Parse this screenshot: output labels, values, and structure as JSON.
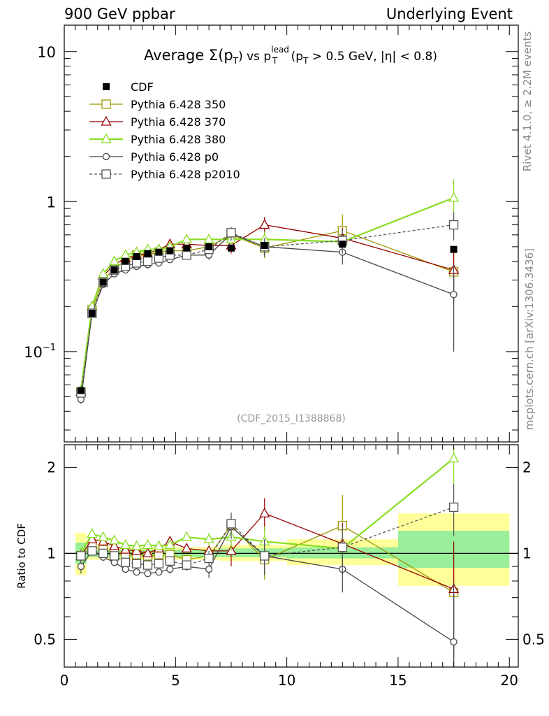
{
  "header": {
    "left": "900 GeV ppbar",
    "right": "Underlying Event"
  },
  "side_labels": {
    "rivet": "Rivet 4.1.0, ≥ 2.2M events",
    "mcplots": "mcplots.cern.ch [arXiv:1306.3436]"
  },
  "chart_data": [
    {
      "type": "line",
      "panel": "main",
      "title": "Average Σ(pT) vs pT lead (pT > 0.5 GeV, |η| < 0.8)",
      "title_parts": {
        "prefix": "Average ",
        "sigma": "Σ(p",
        "sub_t": "T",
        "close": ")",
        "vs": " vs p",
        "sup_lead": "lead",
        "sub_t2": "T",
        "cut_open": " (p",
        "sub_t3": "T",
        "cut_rest": " > 0.5 GeV, |η| < 0.8)"
      },
      "watermark": "(CDF_2015_I1388868)",
      "yscale": "log",
      "ylim": [
        0.025,
        15
      ],
      "xlim": [
        0,
        20.4
      ],
      "yticks": [
        {
          "value": 10,
          "label": "10"
        },
        {
          "value": 1,
          "label": "1"
        },
        {
          "value": 0.1,
          "label": "10",
          "sup": "−1"
        }
      ],
      "legend": {
        "placement": "top-left",
        "entries": [
          {
            "label": "CDF",
            "key": "cdf"
          },
          {
            "label": "Pythia 6.428 350",
            "key": "p350"
          },
          {
            "label": "Pythia 6.428 370",
            "key": "p370"
          },
          {
            "label": "Pythia 6.428 380",
            "key": "p380"
          },
          {
            "label": "Pythia 6.428 p0",
            "key": "p0"
          },
          {
            "label": "Pythia 6.428 p2010",
            "key": "p2010"
          }
        ]
      },
      "x": [
        0.75,
        1.25,
        1.75,
        2.25,
        2.75,
        3.25,
        3.75,
        4.25,
        4.75,
        5.5,
        6.5,
        7.5,
        9,
        12.5,
        17.5
      ],
      "series": [
        {
          "name": "CDF",
          "key": "cdf",
          "color": "#000000",
          "marker": "square-filled",
          "line": "none",
          "values": [
            0.055,
            0.18,
            0.29,
            0.35,
            0.4,
            0.43,
            0.45,
            0.46,
            0.47,
            0.49,
            0.5,
            0.49,
            0.51,
            0.52,
            0.48
          ]
        },
        {
          "name": "Pythia 6.428 350",
          "key": "p350",
          "color": "#999900",
          "marker": "square-open",
          "line": "solid",
          "values": [
            0.054,
            0.19,
            0.3,
            0.36,
            0.4,
            0.44,
            0.44,
            0.46,
            0.47,
            0.47,
            0.5,
            0.6,
            0.49,
            0.64,
            0.34
          ],
          "errors": [
            0.003,
            0.006,
            0.008,
            0.008,
            0.008,
            0.008,
            0.01,
            0.01,
            0.01,
            0.015,
            0.03,
            0.06,
            0.07,
            0.18,
            0.12
          ]
        },
        {
          "name": "Pythia 6.428 370",
          "key": "p370",
          "color": "#990000",
          "marker": "triangle-open",
          "line": "solid",
          "values": [
            0.054,
            0.2,
            0.32,
            0.38,
            0.42,
            0.44,
            0.45,
            0.48,
            0.52,
            0.52,
            0.51,
            0.51,
            0.7,
            0.57,
            0.35
          ],
          "errors": [
            0.003,
            0.006,
            0.008,
            0.008,
            0.008,
            0.008,
            0.01,
            0.01,
            0.012,
            0.015,
            0.03,
            0.06,
            0.09,
            0.1,
            0.14
          ]
        },
        {
          "name": "Pythia 6.428 380",
          "key": "p380",
          "color": "#88dd22",
          "marker": "triangle-open",
          "line": "solid",
          "values": [
            0.055,
            0.2,
            0.33,
            0.4,
            0.44,
            0.46,
            0.48,
            0.48,
            0.5,
            0.56,
            0.56,
            0.56,
            0.56,
            0.54,
            1.06
          ],
          "errors": [
            0.003,
            0.006,
            0.008,
            0.008,
            0.008,
            0.008,
            0.01,
            0.01,
            0.012,
            0.015,
            0.03,
            0.06,
            0.07,
            0.1,
            0.35
          ]
        },
        {
          "name": "Pythia 6.428 p0",
          "key": "p0",
          "color": "#444444",
          "marker": "circle-open",
          "line": "solid",
          "values": [
            0.048,
            0.18,
            0.28,
            0.33,
            0.35,
            0.37,
            0.38,
            0.39,
            0.41,
            0.44,
            0.44,
            0.61,
            0.5,
            0.46,
            0.24
          ],
          "errors": [
            0.003,
            0.006,
            0.008,
            0.008,
            0.008,
            0.008,
            0.01,
            0.01,
            0.012,
            0.015,
            0.03,
            0.06,
            0.07,
            0.08,
            0.14
          ]
        },
        {
          "name": "Pythia 6.428 p2010",
          "key": "p2010",
          "color": "#555555",
          "marker": "square-open",
          "line": "dashed",
          "values": [
            0.053,
            0.18,
            0.29,
            0.35,
            0.37,
            0.39,
            0.4,
            0.42,
            0.44,
            0.44,
            0.48,
            0.62,
            0.5,
            0.55,
            0.7
          ],
          "errors": [
            0.003,
            0.006,
            0.008,
            0.008,
            0.008,
            0.008,
            0.01,
            0.01,
            0.012,
            0.015,
            0.03,
            0.06,
            0.07,
            0.1,
            0.15
          ]
        }
      ]
    },
    {
      "type": "line",
      "panel": "ratio",
      "ylabel": "Ratio to CDF",
      "xlabel": "",
      "yscale": "log",
      "ylim": [
        0.4,
        2.4
      ],
      "xlim": [
        0,
        20.4
      ],
      "yticks": [
        {
          "value": 2,
          "label": "2"
        },
        {
          "value": 1,
          "label": "1"
        },
        {
          "value": 0.5,
          "label": "0.5"
        }
      ],
      "xticks": [
        {
          "value": 0,
          "label": "0"
        },
        {
          "value": 5,
          "label": "5"
        },
        {
          "value": 10,
          "label": "10"
        },
        {
          "value": 15,
          "label": "15"
        },
        {
          "value": 20,
          "label": "20"
        }
      ],
      "bands": [
        {
          "x0": 0.5,
          "x1": 1.0,
          "yellow": [
            0.84,
            1.18
          ],
          "green": [
            0.92,
            1.09
          ]
        },
        {
          "x0": 1.0,
          "x1": 7.0,
          "yellow": [
            0.95,
            1.05
          ],
          "green": [
            0.97,
            1.03
          ]
        },
        {
          "x0": 7.0,
          "x1": 10.0,
          "yellow": [
            0.94,
            1.07
          ],
          "green": [
            0.97,
            1.04
          ]
        },
        {
          "x0": 10.0,
          "x1": 15.0,
          "yellow": [
            0.91,
            1.12
          ],
          "green": [
            0.96,
            1.05
          ]
        },
        {
          "x0": 15.0,
          "x1": 20.0,
          "yellow": [
            0.77,
            1.38
          ],
          "green": [
            0.89,
            1.2
          ]
        }
      ],
      "x": [
        0.75,
        1.25,
        1.75,
        2.25,
        2.75,
        3.25,
        3.75,
        4.25,
        4.75,
        5.5,
        6.5,
        7.5,
        9,
        12.5,
        17.5
      ],
      "series": [
        {
          "name": "Pythia 6.428 350",
          "key": "p350",
          "color": "#999900",
          "marker": "square-open",
          "line": "solid",
          "values": [
            0.98,
            1.06,
            1.03,
            1.0,
            0.98,
            0.99,
            0.98,
            0.99,
            0.99,
            0.95,
            0.98,
            1.25,
            0.95,
            1.25,
            0.73
          ],
          "errors": [
            0.05,
            0.03,
            0.03,
            0.03,
            0.02,
            0.02,
            0.02,
            0.02,
            0.03,
            0.03,
            0.06,
            0.12,
            0.14,
            0.35,
            0.3
          ]
        },
        {
          "name": "Pythia 6.428 370",
          "key": "p370",
          "color": "#990000",
          "marker": "triangle-open",
          "line": "solid",
          "values": [
            0.98,
            1.12,
            1.1,
            1.06,
            1.03,
            1.02,
            1.0,
            1.04,
            1.1,
            1.04,
            1.02,
            1.02,
            1.38,
            1.08,
            0.75
          ],
          "errors": [
            0.05,
            0.03,
            0.03,
            0.03,
            0.02,
            0.02,
            0.02,
            0.02,
            0.03,
            0.03,
            0.06,
            0.12,
            0.18,
            0.2,
            0.35
          ]
        },
        {
          "name": "Pythia 6.428 380",
          "key": "p380",
          "color": "#88dd22",
          "marker": "triangle-open",
          "line": "solid",
          "values": [
            1.0,
            1.17,
            1.14,
            1.11,
            1.07,
            1.06,
            1.07,
            1.06,
            1.07,
            1.14,
            1.12,
            1.14,
            1.1,
            1.04,
            2.15
          ],
          "errors": [
            0.05,
            0.03,
            0.03,
            0.03,
            0.02,
            0.02,
            0.02,
            0.02,
            0.03,
            0.03,
            0.06,
            0.12,
            0.14,
            0.2,
            0.55
          ]
        },
        {
          "name": "Pythia 6.428 p0",
          "key": "p0",
          "color": "#444444",
          "marker": "circle-open",
          "line": "solid",
          "values": [
            0.9,
            1.02,
            0.97,
            0.93,
            0.88,
            0.86,
            0.85,
            0.86,
            0.88,
            0.9,
            0.88,
            1.24,
            0.98,
            0.88,
            0.49
          ],
          "errors": [
            0.05,
            0.03,
            0.03,
            0.03,
            0.02,
            0.02,
            0.02,
            0.02,
            0.03,
            0.03,
            0.06,
            0.12,
            0.14,
            0.15,
            0.3
          ]
        },
        {
          "name": "Pythia 6.428 p2010",
          "key": "p2010",
          "color": "#555555",
          "marker": "square-open",
          "line": "dashed",
          "values": [
            0.98,
            1.02,
            1.0,
            0.98,
            0.93,
            0.92,
            0.91,
            0.92,
            0.94,
            0.91,
            0.96,
            1.27,
            0.98,
            1.05,
            1.45
          ],
          "errors": [
            0.05,
            0.03,
            0.03,
            0.03,
            0.02,
            0.02,
            0.02,
            0.02,
            0.03,
            0.03,
            0.06,
            0.12,
            0.14,
            0.2,
            0.3
          ]
        }
      ]
    }
  ]
}
